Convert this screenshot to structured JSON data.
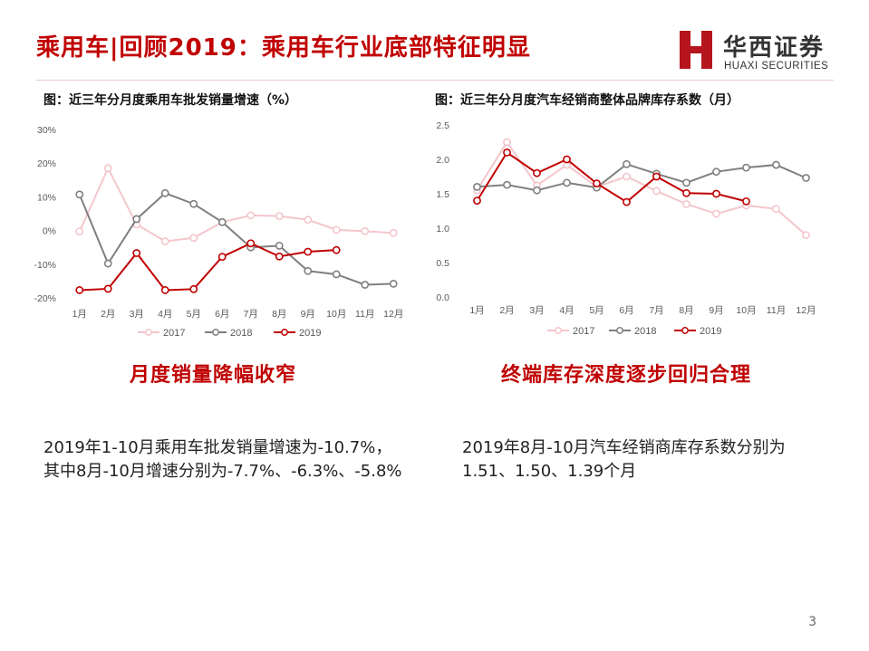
{
  "header": {
    "title": "乘用车|回顾2019：乘用车行业底部特征明显",
    "logo_cn": "华西证券",
    "logo_en": "HUAXI SECURITIES",
    "logo_color": "#b5161e"
  },
  "left": {
    "caption": "图：近三年分月度乘用车批发销量增速（%）",
    "subhead": "月度销量降幅收窄",
    "body": "2019年1-10月乘用车批发销量增速为-10.7%，其中8月-10月增速分别为-7.7%、-6.3%、-5.8%"
  },
  "right": {
    "caption": "图：近三年分月度汽车经销商整体品牌库存系数（月）",
    "subhead": "终端库存深度逐步回归合理",
    "body": "2019年8月-10月汽车经销商库存系数分别为1.51、1.50、1.39个月"
  },
  "page_number": "3",
  "chart_data": [
    {
      "type": "line",
      "title": "图：近三年分月度乘用车批发销量增速（%）",
      "categories": [
        "1月",
        "2月",
        "3月",
        "4月",
        "5月",
        "6月",
        "7月",
        "8月",
        "9月",
        "10月",
        "11月",
        "12月"
      ],
      "yticks": [
        "30%",
        "20%",
        "10%",
        "0%",
        "-10%",
        "-20%"
      ],
      "ylim": [
        -20,
        30
      ],
      "grid": false,
      "legend": "bottom",
      "series": [
        {
          "name": "2017",
          "color": "#f4c6cc",
          "values": [
            -0.3,
            18.5,
            1.8,
            -3.2,
            -2.2,
            2.5,
            4.5,
            4.3,
            3.2,
            0.2,
            -0.2,
            -0.7
          ]
        },
        {
          "name": "2018",
          "color": "#7f7f7f",
          "values": [
            10.7,
            -9.8,
            3.4,
            11.1,
            7.9,
            2.5,
            -5.0,
            -4.5,
            -12.0,
            -13.0,
            -16.1,
            -15.8
          ]
        },
        {
          "name": "2019",
          "color": "#c00000",
          "values": [
            -17.7,
            -17.3,
            -6.7,
            -17.7,
            -17.4,
            -7.8,
            -3.8,
            -7.7,
            -6.3,
            -5.8,
            null,
            null
          ]
        }
      ]
    },
    {
      "type": "line",
      "title": "图：近三年分月度汽车经销商整体品牌库存系数（月）",
      "categories": [
        "1月",
        "2月",
        "3月",
        "4月",
        "5月",
        "6月",
        "7月",
        "8月",
        "9月",
        "10月",
        "11月",
        "12月"
      ],
      "yticks": [
        "2.5",
        "2.0",
        "1.5",
        "1.0",
        "0.5",
        "0.0"
      ],
      "ylim": [
        0,
        2.5
      ],
      "grid": false,
      "legend": "bottom",
      "series": [
        {
          "name": "2017",
          "color": "#f4c6cc",
          "values": [
            1.55,
            2.25,
            1.62,
            1.92,
            1.6,
            1.75,
            1.54,
            1.35,
            1.21,
            1.33,
            1.28,
            0.9
          ]
        },
        {
          "name": "2018",
          "color": "#7f7f7f",
          "values": [
            1.6,
            1.63,
            1.55,
            1.66,
            1.59,
            1.93,
            1.79,
            1.66,
            1.82,
            1.88,
            1.92,
            1.73
          ]
        },
        {
          "name": "2019",
          "color": "#c00000",
          "values": [
            1.4,
            2.1,
            1.8,
            2.0,
            1.65,
            1.38,
            1.75,
            1.51,
            1.5,
            1.39,
            null,
            null
          ]
        }
      ]
    }
  ]
}
